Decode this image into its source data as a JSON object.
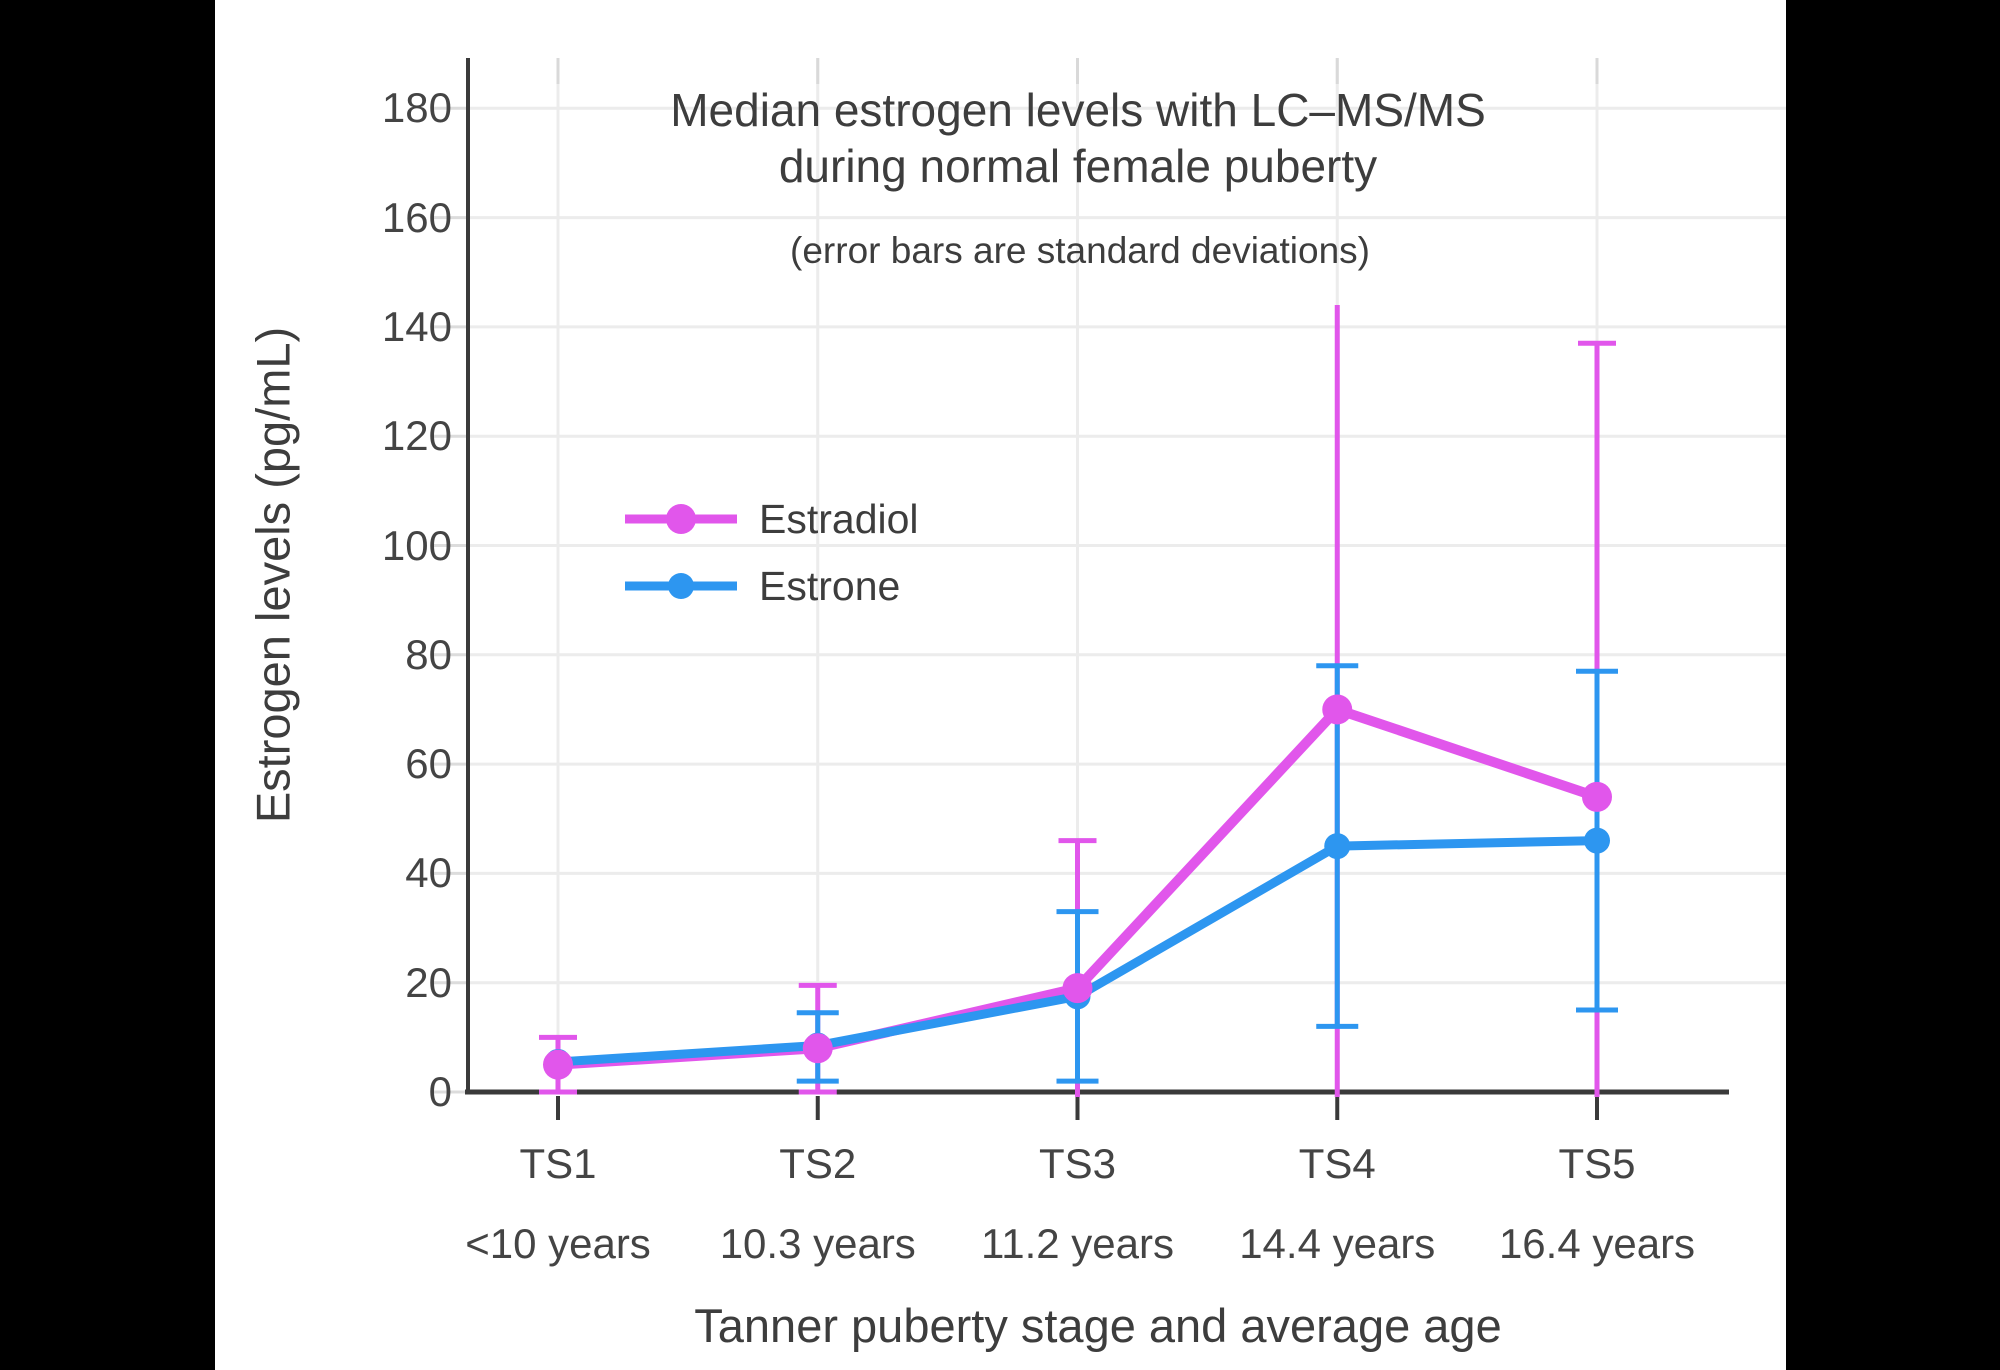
{
  "colors": {
    "background": "#000000",
    "panel": "#ffffff",
    "text": "#3d3d3d",
    "tick_text": "#444444",
    "grid": "#ececec",
    "grid_stub": "#d9d9d9",
    "axis": "#3a3a3a",
    "estradiol": "#e156eb",
    "estrone": "#2d96f0"
  },
  "chart_data": {
    "type": "line",
    "title": "Median estrogen levels with LC–MS/MS",
    "title_line2": "during normal female puberty",
    "subtitle": "(error bars are standard deviations)",
    "xlabel": "Tanner puberty stage and average age",
    "ylabel": "Estrogen levels (pg/mL)",
    "categories": [
      "TS1",
      "TS2",
      "TS3",
      "TS4",
      "TS5"
    ],
    "category_sublabels": [
      "<10 years",
      "10.3 years",
      "11.2 years",
      "14.4 years",
      "16.4 years"
    ],
    "ylim": [
      0,
      190
    ],
    "yticks": [
      0,
      20,
      40,
      60,
      80,
      100,
      120,
      140,
      160,
      180
    ],
    "grid": true,
    "legend_position": "inside-left-middle",
    "error_bar_meaning": "standard deviation",
    "series": [
      {
        "name": "Estradiol",
        "color": "#e156eb",
        "values": [
          5,
          8,
          19,
          70,
          54
        ],
        "sd": [
          5,
          11.5,
          27,
          74,
          83
        ],
        "error_top": [
          10,
          19.5,
          46,
          144,
          137
        ],
        "error_bottom": [
          0,
          0,
          null,
          null,
          null
        ],
        "error_top_cap": [
          true,
          true,
          true,
          false,
          true
        ],
        "note_error_bottom_null": "bar extends below 0 and is clipped at the x-axis"
      },
      {
        "name": "Estrone",
        "color": "#2d96f0",
        "values": [
          5.5,
          8.5,
          17.5,
          45,
          46
        ],
        "sd": [
          null,
          6.3,
          15.5,
          33,
          31
        ],
        "error_top": [
          null,
          14.5,
          33,
          78,
          77
        ],
        "error_bottom": [
          null,
          2,
          2,
          12,
          15
        ]
      }
    ]
  }
}
